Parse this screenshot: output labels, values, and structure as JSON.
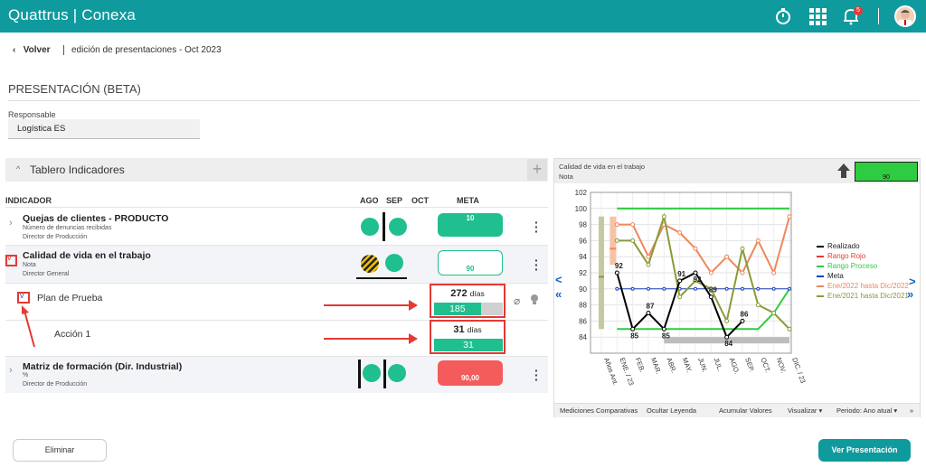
{
  "app": {
    "brand": "Quattrus | Conexa",
    "notification_count": "5"
  },
  "nav": {
    "back_label": "Volver",
    "breadcrumb": "edición de presentaciones - Oct 2023"
  },
  "page": {
    "title": "PRESENTACIÓN (BETA)",
    "responsable_label": "Responsable",
    "responsable_value": "Logística ES"
  },
  "tablero": {
    "title": "Tablero Indicadores",
    "add": "+"
  },
  "table_headers": {
    "indicador": "INDICADOR",
    "months": [
      "AGO",
      "SEP",
      "OCT"
    ],
    "meta": "META"
  },
  "indicators": [
    {
      "title": "Quejas de clientes - PRODUCTO",
      "sub1": "Número de denuncias recibidas",
      "sub2": "Director de Producción",
      "meta": "10",
      "meta_color": "#1fbf8f"
    },
    {
      "title": "Calidad de vida en el trabajo",
      "sub1": "Nota",
      "sub2": "Director General",
      "meta": "90",
      "meta_color": "#ffffff"
    },
    {
      "title": "Matriz de formación (Dir. Industrial)",
      "sub1": "%",
      "sub2": "Director de Producción",
      "meta": "90,00",
      "meta_color": "#f45b5b"
    }
  ],
  "plans": [
    {
      "label": "Plan de Prueba",
      "days": "272",
      "days_unit": "días",
      "bar_value": "185",
      "bar_fraction": 0.68
    },
    {
      "label": "Acción 1",
      "days": "31",
      "days_unit": "días",
      "bar_value": "31",
      "bar_fraction": 1.0
    }
  ],
  "chart_panel": {
    "title": "Calidad de vida en el trabajo",
    "subtitle": "Nota",
    "status_value": "90"
  },
  "chart_data": {
    "type": "line",
    "categories": [
      "Años Ant.",
      "ENE. / 23",
      "FEB.",
      "MAR.",
      "ABR.",
      "MAY.",
      "JUN.",
      "JUL.",
      "AGO.",
      "SEP.",
      "OCT.",
      "NOV.",
      "DIC. / 23"
    ],
    "ylim": [
      82,
      102
    ],
    "yticks": [
      84,
      86,
      88,
      90,
      92,
      94,
      96,
      98,
      100,
      102
    ],
    "grid": true,
    "legend_position": "right",
    "series": [
      {
        "name": "Realizado",
        "color": "#000000",
        "values": [
          null,
          92,
          85,
          87,
          85,
          91,
          92,
          89,
          84,
          86,
          null,
          null,
          null
        ],
        "labels": [
          null,
          "92",
          "85",
          "87",
          "85",
          "91",
          "92",
          "89",
          "84",
          "86",
          null,
          null,
          null
        ]
      },
      {
        "name": "Rango Rojo",
        "color": "#e53935",
        "values": [
          null,
          null,
          null,
          null,
          null,
          null,
          null,
          null,
          null,
          null,
          null,
          null,
          null
        ]
      },
      {
        "name": "Rango Proceso",
        "color": "#2ecc40",
        "values": [
          null,
          85,
          85,
          85,
          85,
          85,
          85,
          85,
          85,
          85,
          85,
          87,
          90
        ],
        "upper": [
          null,
          100,
          100,
          100,
          100,
          100,
          100,
          100,
          100,
          100,
          100,
          100,
          100
        ]
      },
      {
        "name": "Meta",
        "color": "#1e3fbf",
        "values": [
          null,
          90,
          90,
          90,
          90,
          90,
          90,
          90,
          90,
          90,
          90,
          90,
          90
        ]
      },
      {
        "name": "Ene/2022 hasta Dic/2022",
        "color": "#f0875a",
        "values": [
          null,
          98,
          98,
          94,
          98,
          97,
          95,
          92,
          94,
          92,
          96,
          92,
          99
        ]
      },
      {
        "name": "Ene/2021 hasta Dic/2021",
        "color": "#8a9a3a",
        "values": [
          null,
          96,
          96,
          93,
          99,
          89,
          91,
          90,
          86,
          95,
          88,
          87,
          85
        ]
      }
    ]
  },
  "chart_footer": [
    "Mediciones Comparativas",
    "Ocultar Leyenda",
    "Acumular Valores",
    "Visualizar ▾",
    "Periodo: Ano atual ▾",
    "»"
  ],
  "buttons": {
    "delete": "Eliminar",
    "view": "Ver Presentación"
  }
}
